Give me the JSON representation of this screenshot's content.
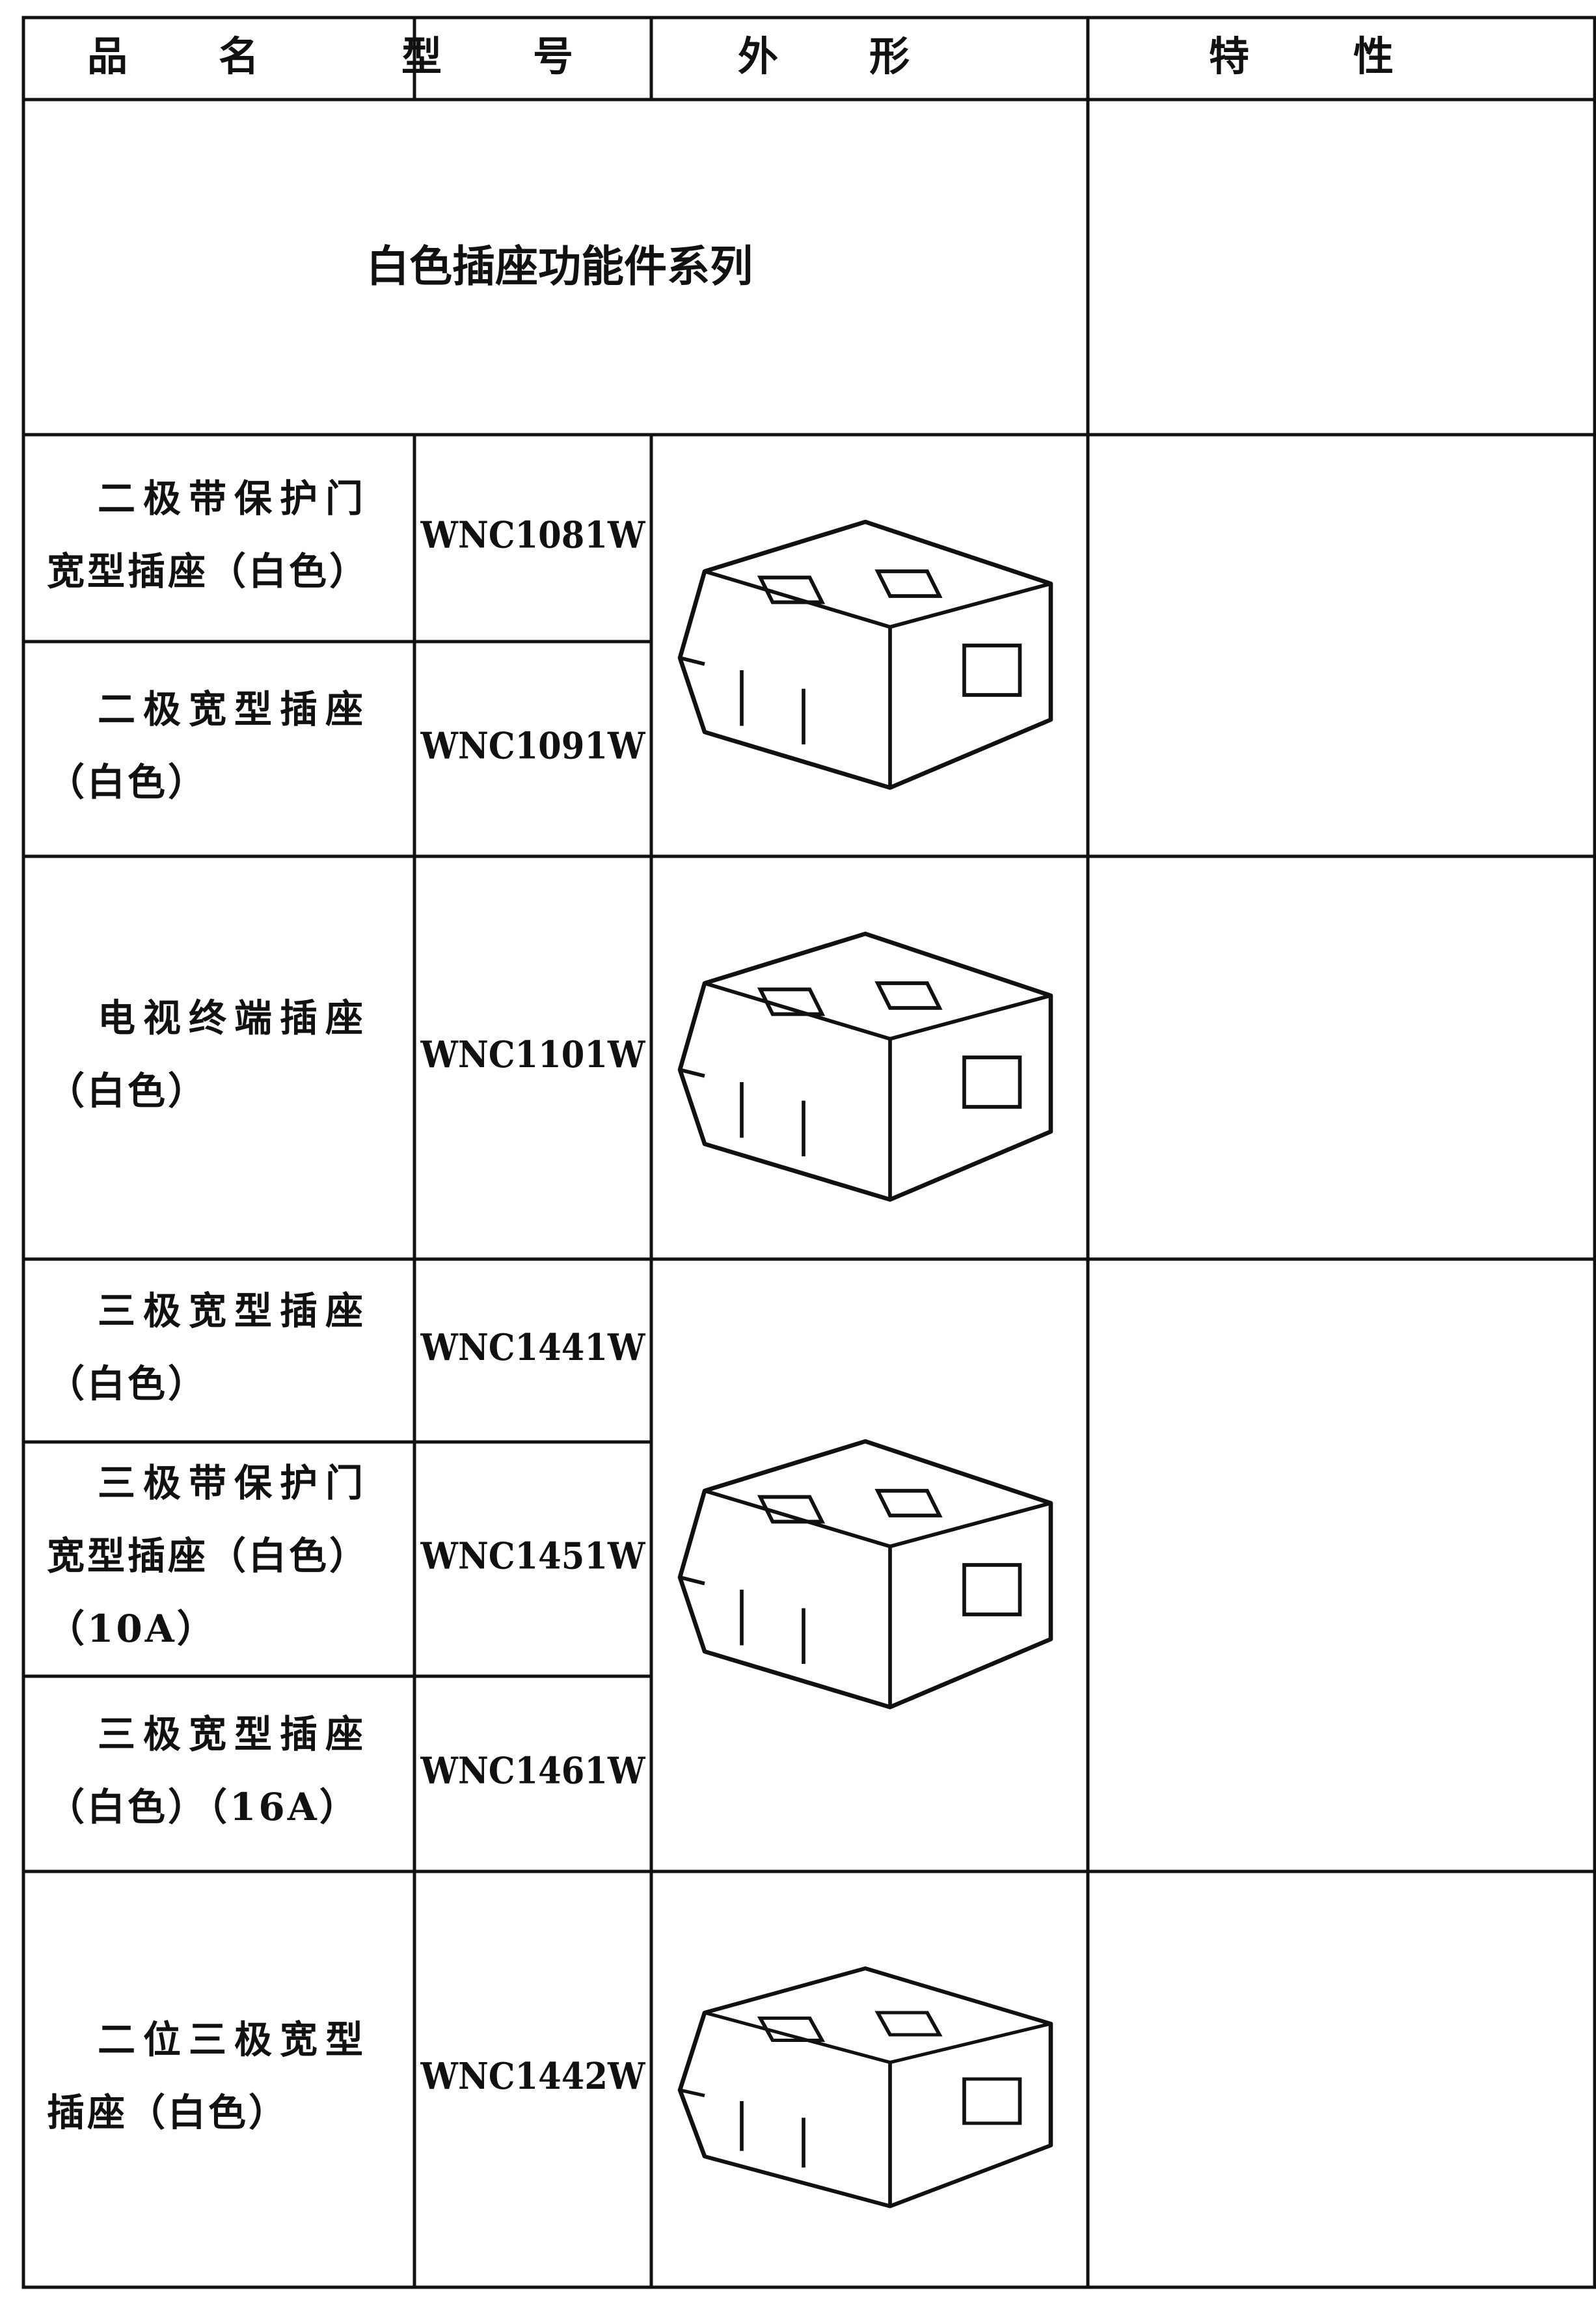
{
  "table": {
    "header": [
      "品名",
      "型号",
      "外形",
      "特性"
    ],
    "section": "白色插座功能件系列",
    "rows": [
      {
        "name": [
          "二极带保护门",
          "宽型插座（白色）"
        ],
        "model": "WNC1081W"
      },
      {
        "name": [
          "二极宽型插座",
          "（白色）"
        ],
        "model": "WNC1091W"
      },
      {
        "name": [
          "电视终端插座",
          "（白色）"
        ],
        "model": "WNC1101W"
      },
      {
        "name": [
          "三极宽型插座",
          "（白色）"
        ],
        "model": "WNC1441W"
      },
      {
        "name": [
          "三极带保护门",
          "宽型插座（白色）",
          "（10A）"
        ],
        "model": "WNC1451W"
      },
      {
        "name": [
          "三极宽型插座",
          "（白色）（16A）"
        ],
        "model": "WNC1461W"
      },
      {
        "name": [
          "二位三极宽型",
          "插座（白色）"
        ],
        "model": "WNC1442W"
      }
    ]
  }
}
